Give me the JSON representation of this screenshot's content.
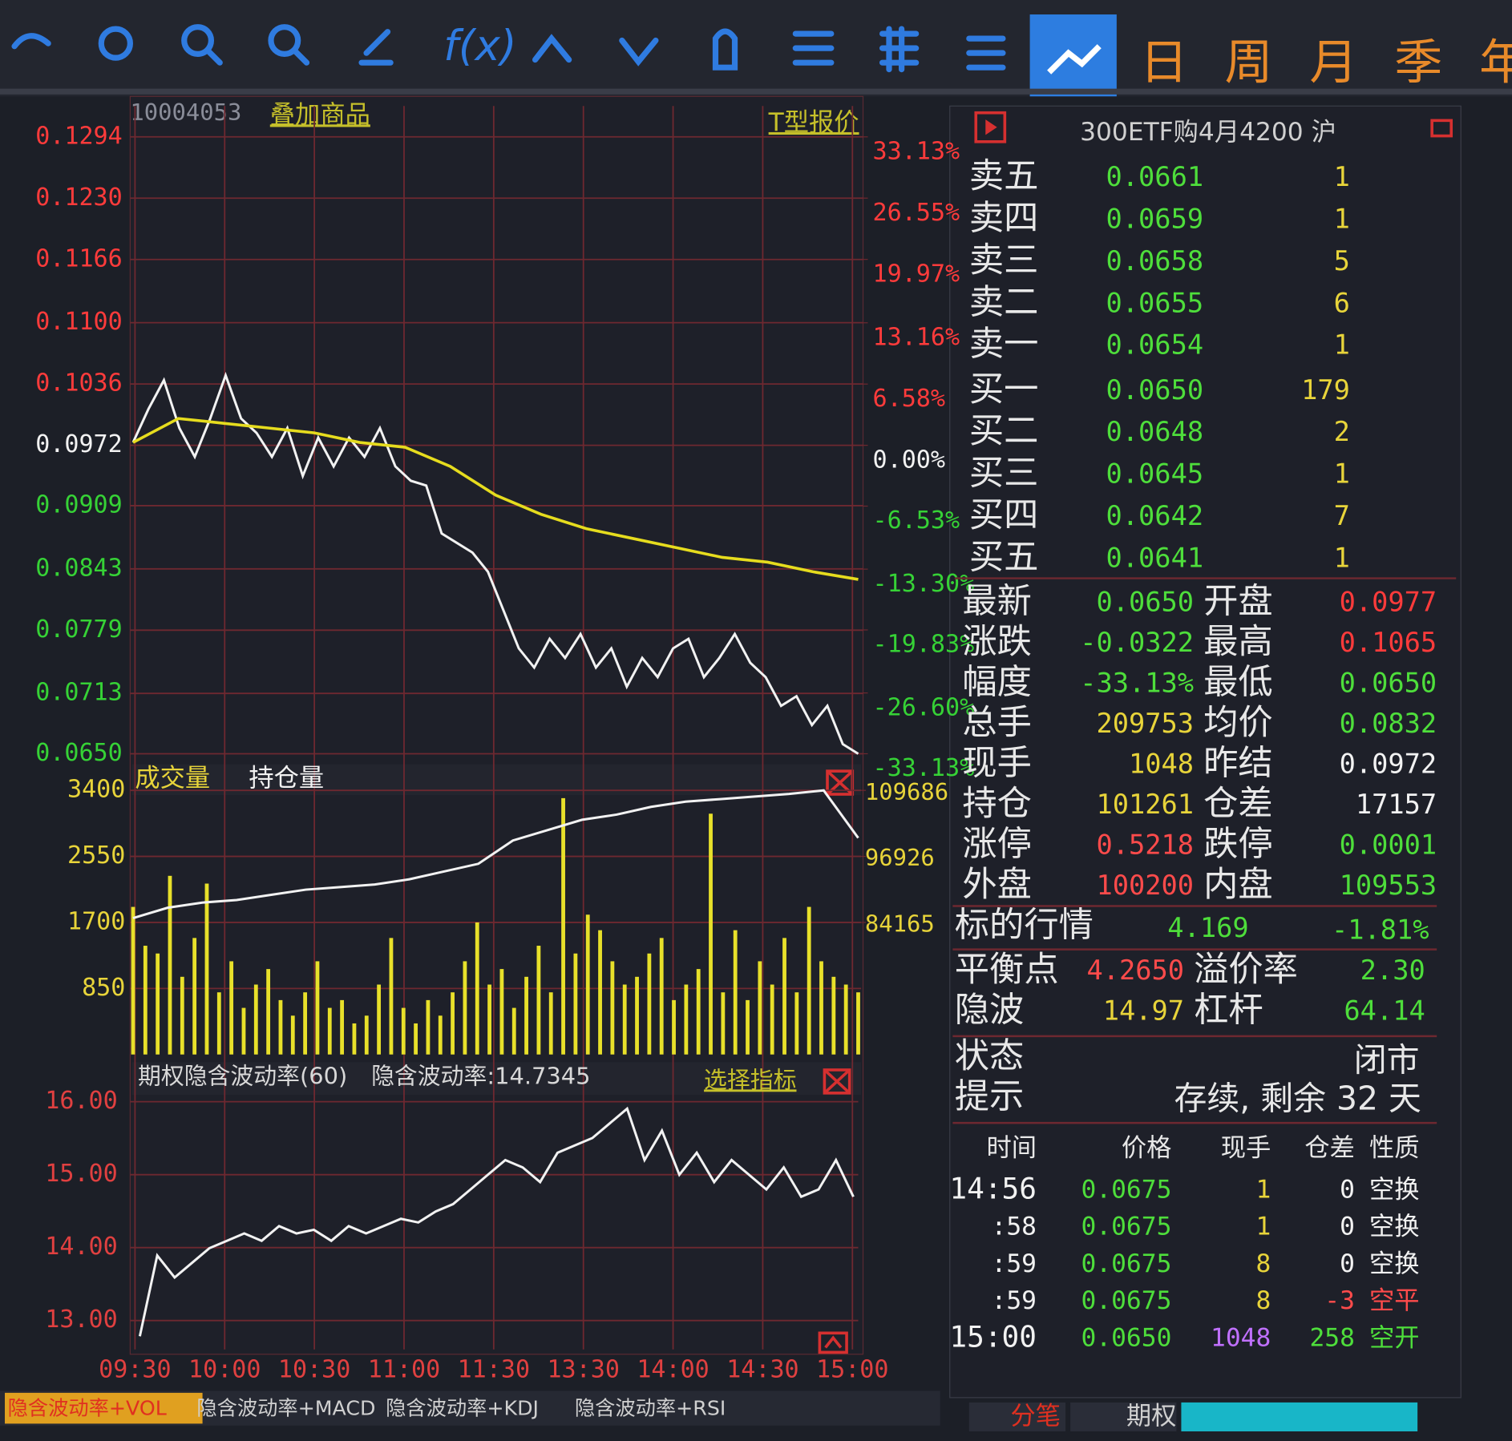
{
  "toolbar": {
    "periods": [
      "日",
      "周",
      "月",
      "季",
      "年"
    ]
  },
  "header": {
    "code": "10004053",
    "overlay": "叠加商品",
    "t_quote": "T型报价",
    "contract": "300ETF购4月4200 沪"
  },
  "price_chart": {
    "type": "line",
    "ylim": [
      0.065,
      0.1294
    ],
    "yticks": [
      {
        "value": 0.1294,
        "label": "0.1294"
      },
      {
        "value": 0.123,
        "label": "0.1230"
      },
      {
        "value": 0.1166,
        "label": "0.1166"
      },
      {
        "value": 0.11,
        "label": "0.1100"
      },
      {
        "value": 0.1036,
        "label": "0.1036"
      },
      {
        "value": 0.0972,
        "label": "0.0972"
      },
      {
        "value": 0.0909,
        "label": "0.0909"
      },
      {
        "value": 0.0843,
        "label": "0.0843"
      },
      {
        "value": 0.0779,
        "label": "0.0779"
      },
      {
        "value": 0.0713,
        "label": "0.0713"
      },
      {
        "value": 0.065,
        "label": "0.0650"
      }
    ],
    "y2lim": [
      -33.13,
      33.13
    ],
    "y2ticks": [
      {
        "value": 33.13,
        "label": "33.13%"
      },
      {
        "value": 26.55,
        "label": "26.55%"
      },
      {
        "value": 19.97,
        "label": "19.97%"
      },
      {
        "value": 13.16,
        "label": "13.16%"
      },
      {
        "value": 6.58,
        "label": "6.58%"
      },
      {
        "value": 0,
        "label": "0.00%"
      },
      {
        "value": -6.53,
        "label": "-6.53%"
      },
      {
        "value": -13.3,
        "label": "-13.30%"
      },
      {
        "value": -19.83,
        "label": "-19.83%"
      },
      {
        "value": -26.6,
        "label": "-26.60%"
      },
      {
        "value": -33.13,
        "label": "-33.13%"
      }
    ],
    "series": [
      {
        "color": "#f2f2f2",
        "values": [
          0.0975,
          0.101,
          0.104,
          0.099,
          0.096,
          0.1,
          0.1045,
          0.1,
          0.0985,
          0.096,
          0.099,
          0.094,
          0.098,
          0.095,
          0.098,
          0.096,
          0.099,
          0.095,
          0.0935,
          0.093,
          0.088,
          0.087,
          0.086,
          0.084,
          0.08,
          0.076,
          0.074,
          0.077,
          0.075,
          0.0775,
          0.074,
          0.076,
          0.072,
          0.075,
          0.073,
          0.076,
          0.077,
          0.073,
          0.075,
          0.0775,
          0.0745,
          0.073,
          0.07,
          0.071,
          0.068,
          0.07,
          0.066,
          0.065
        ]
      },
      {
        "color": "#e6dc1e",
        "values": [
          0.0975,
          0.1,
          0.0995,
          0.099,
          0.0985,
          0.0975,
          0.097,
          0.095,
          0.092,
          0.09,
          0.0885,
          0.0875,
          0.0865,
          0.0855,
          0.085,
          0.084,
          0.0832
        ]
      }
    ]
  },
  "volume_chart": {
    "type": "bar",
    "labels": [
      "成交量",
      "持仓量"
    ],
    "ylim": [
      0,
      3400
    ],
    "yticks": [
      3400,
      2550,
      1700,
      850
    ],
    "color": "#e8e02a",
    "values": [
      1900,
      1400,
      1300,
      2300,
      1000,
      1500,
      2200,
      800,
      1200,
      600,
      900,
      1100,
      700,
      500,
      800,
      1200,
      600,
      700,
      400,
      500,
      900,
      1500,
      600,
      400,
      700,
      500,
      800,
      1200,
      1700,
      900,
      1100,
      600,
      1000,
      1400,
      800,
      3300,
      1300,
      1800,
      1600,
      1200,
      900,
      1000,
      1300,
      1500,
      700,
      900,
      1100,
      3100,
      800,
      1600,
      700,
      1200,
      900,
      1500,
      800,
      1900,
      1200,
      1000,
      900,
      800
    ],
    "y2lim": [
      58644,
      109686
    ],
    "y2ticks": [
      109686,
      96926,
      84165
    ],
    "oi": {
      "color": "#f2f2f2",
      "axis": "y2",
      "values": [
        85000,
        87000,
        88000,
        88500,
        89500,
        90500,
        91000,
        91500,
        92500,
        94000,
        95500,
        100000,
        102000,
        104000,
        105000,
        106500,
        107500,
        108000,
        108500,
        109000,
        109686,
        100500
      ]
    }
  },
  "iv_chart": {
    "type": "line",
    "title": "期权隐含波动率(60)",
    "current": "隐含波动率:14.7345",
    "select": "选择指标",
    "ylim": [
      12.62,
      16.1
    ],
    "yticks": [
      {
        "value": 16,
        "label": "16.00"
      },
      {
        "value": 15,
        "label": "15.00"
      },
      {
        "value": 14,
        "label": "14.00"
      },
      {
        "value": 13,
        "label": "13.00"
      }
    ],
    "categories": [
      "09:30",
      "10:00",
      "10:30",
      "11:00",
      "11:30",
      "13:30",
      "14:00",
      "14:30",
      "15:00"
    ],
    "color": "#f2f2f2",
    "values": [
      12.8,
      13.9,
      13.6,
      13.8,
      14.0,
      14.1,
      14.2,
      14.1,
      14.3,
      14.2,
      14.25,
      14.1,
      14.3,
      14.2,
      14.3,
      14.4,
      14.35,
      14.5,
      14.6,
      14.8,
      15.0,
      15.2,
      15.1,
      14.9,
      15.3,
      15.4,
      15.5,
      15.7,
      15.9,
      15.2,
      15.6,
      15.0,
      15.3,
      14.9,
      15.2,
      15.0,
      14.8,
      15.1,
      14.7,
      14.8,
      15.2,
      14.7
    ]
  },
  "order_book": [
    [
      "卖五",
      "0.0661",
      "1"
    ],
    [
      "卖四",
      "0.0659",
      "1"
    ],
    [
      "卖三",
      "0.0658",
      "5"
    ],
    [
      "卖二",
      "0.0655",
      "6"
    ],
    [
      "卖一",
      "0.0654",
      "1"
    ],
    [
      "买一",
      "0.0650",
      "179"
    ],
    [
      "买二",
      "0.0648",
      "2"
    ],
    [
      "买三",
      "0.0645",
      "1"
    ],
    [
      "买四",
      "0.0642",
      "7"
    ],
    [
      "买五",
      "0.0641",
      "1"
    ]
  ],
  "quotes": {
    "rows": [
      [
        "最新",
        "0.0650",
        "开盘",
        "0.0977"
      ],
      [
        "涨跌",
        "-0.0322",
        "最高",
        "0.1065"
      ],
      [
        "幅度",
        "-33.13%",
        "最低",
        "0.0650"
      ],
      [
        "总手",
        "209753",
        "均价",
        "0.0832"
      ],
      [
        "现手",
        "1048",
        "昨结",
        "0.0972"
      ],
      [
        "持仓",
        "101261",
        "仓差",
        "17157"
      ],
      [
        "涨停",
        "0.5218",
        "跌停",
        "0.0001"
      ],
      [
        "外盘",
        "100200",
        "内盘",
        "109553"
      ]
    ],
    "colors": [
      [
        "#4ede3b",
        "#ff3b3b"
      ],
      [
        "#4ede3b",
        "#ff3b3b"
      ],
      [
        "#4ede3b",
        "#4ede3b"
      ],
      [
        "#e8d43a",
        "#4ede3b"
      ],
      [
        "#e8d43a",
        "#f2f2f2"
      ],
      [
        "#e8d43a",
        "#f2f2f2"
      ],
      [
        "#ff4b4b",
        "#4ede3b"
      ],
      [
        "#ff4b4b",
        "#4ede3b"
      ]
    ]
  },
  "underlying": [
    "标的行情",
    "4.169",
    "-1.81%"
  ],
  "balance": [
    [
      "平衡点",
      "4.2650",
      "溢价率",
      "2.30"
    ],
    [
      "隐波",
      "14.97",
      "杠杆",
      "64.14"
    ]
  ],
  "status": {
    "state_label": "状态",
    "state": "闭市",
    "hint_label": "提示",
    "hint": "存续, 剩余 32 天"
  },
  "trades": {
    "header": [
      "时间",
      "价格",
      "现手",
      "仓差",
      "性质"
    ],
    "rows": [
      [
        "14:56",
        "0.0675",
        "1",
        "0",
        "空换"
      ],
      [
        ":58",
        "0.0675",
        "1",
        "0",
        "空换"
      ],
      [
        ":59",
        "0.0675",
        "8",
        "0",
        "空换"
      ],
      [
        ":59",
        "0.0675",
        "8",
        "-3",
        "空平"
      ],
      [
        "15:00",
        "0.0650",
        "1048",
        "258",
        "空开"
      ]
    ]
  },
  "bottom_tabs": [
    "隐含波动率+VOL",
    "隐含波动率+MACD",
    "隐含波动率+KDJ",
    "隐含波动率+RSI"
  ],
  "side_tabs": [
    "分笔",
    "期权"
  ]
}
